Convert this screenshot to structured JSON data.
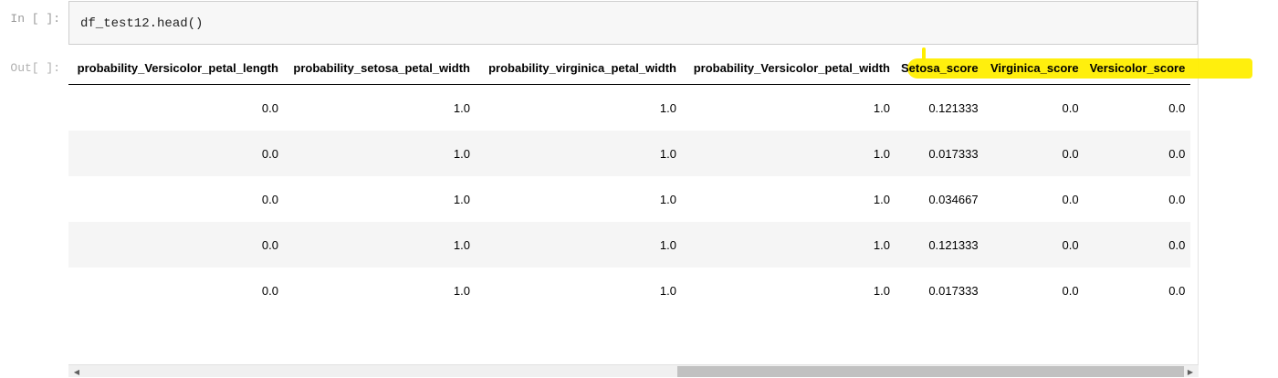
{
  "cell": {
    "in_prompt": "In [ ]:",
    "code": "df_test12.head()",
    "out_prompt": "Out[ ]:"
  },
  "table": {
    "columns": [
      "probability_Versicolor_petal_length",
      "probability_setosa_petal_width",
      "probability_virginica_petal_width",
      "probability_Versicolor_petal_width",
      "Setosa_score",
      "Virginica_score",
      "Versicolor_score"
    ],
    "rows": [
      [
        "0.0",
        "1.0",
        "1.0",
        "1.0",
        "0.121333",
        "0.0",
        "0.0"
      ],
      [
        "0.0",
        "1.0",
        "1.0",
        "1.0",
        "0.017333",
        "0.0",
        "0.0"
      ],
      [
        "0.0",
        "1.0",
        "1.0",
        "1.0",
        "0.034667",
        "0.0",
        "0.0"
      ],
      [
        "0.0",
        "1.0",
        "1.0",
        "1.0",
        "0.121333",
        "0.0",
        "0.0"
      ],
      [
        "0.0",
        "1.0",
        "1.0",
        "1.0",
        "0.017333",
        "0.0",
        "0.0"
      ]
    ]
  },
  "colors": {
    "highlight": "#ffee00",
    "code_cell_bg": "#f7f7f7",
    "stripe": "#f5f5f5"
  },
  "scrollbar": {
    "left_arrow_icon": "triangle-left-icon",
    "right_arrow_icon": "triangle-right-icon"
  }
}
